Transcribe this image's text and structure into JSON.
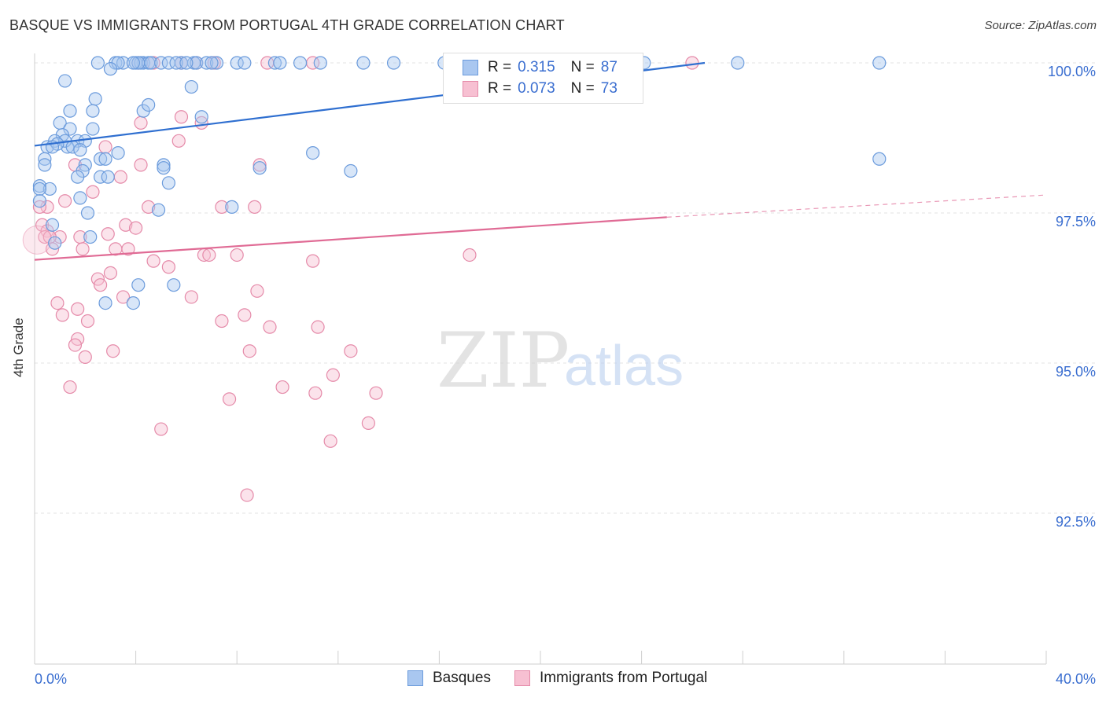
{
  "header": {
    "title": "BASQUE VS IMMIGRANTS FROM PORTUGAL 4TH GRADE CORRELATION CHART",
    "source": "Source: ZipAtlas.com"
  },
  "watermark": {
    "zip": "ZIP",
    "atlas": "atlas"
  },
  "colors": {
    "basques_fill": "#a9c7f0",
    "basques_stroke": "#6b9bdc",
    "basques_line": "#2f6fd0",
    "portugal_fill": "#f7c0d2",
    "portugal_stroke": "#e58aa9",
    "portugal_line": "#e06b95",
    "tick_label": "#3a6ed0",
    "grid": "#e3e3e3"
  },
  "legend": {
    "basques": {
      "r_label": "R =",
      "r_value": "0.315",
      "n_label": "N =",
      "n_value": "87"
    },
    "portugal": {
      "r_label": "R =",
      "r_value": "0.073",
      "n_label": "N =",
      "n_value": "73"
    }
  },
  "chart_data": {
    "type": "scatter",
    "title": "BASQUE VS IMMIGRANTS FROM PORTUGAL 4TH GRADE CORRELATION CHART",
    "xlabel": "",
    "ylabel": "4th Grade",
    "xlim": [
      0,
      40
    ],
    "ylim": [
      90,
      100.25
    ],
    "x_tick_labels": [
      "0.0%",
      "40.0%"
    ],
    "y_ticks": [
      92.5,
      95.0,
      97.5,
      100.0
    ],
    "y_tick_labels": [
      "92.5%",
      "95.0%",
      "97.5%",
      "100.0%"
    ],
    "grid": "horizontal dashed",
    "legend_position": "top-center and bottom",
    "series": [
      {
        "name": "Basques",
        "trend": {
          "x0": 0,
          "y0": 98.62,
          "x1": 26.5,
          "y1": 100.0
        },
        "points": [
          [
            4.3,
            100
          ],
          [
            2.5,
            100
          ],
          [
            3.2,
            100
          ],
          [
            3.5,
            100
          ],
          [
            3.3,
            100
          ],
          [
            4.0,
            100
          ],
          [
            4.2,
            100
          ],
          [
            4.5,
            100
          ],
          [
            4.1,
            100
          ],
          [
            4.6,
            100
          ],
          [
            5.0,
            100
          ],
          [
            5.3,
            100
          ],
          [
            5.8,
            100
          ],
          [
            6.3,
            100
          ],
          [
            6.4,
            100
          ],
          [
            6.8,
            100
          ],
          [
            7.2,
            100
          ],
          [
            5.6,
            100
          ],
          [
            7.0,
            100
          ],
          [
            8.0,
            100
          ],
          [
            6.0,
            100
          ],
          [
            9.5,
            100
          ],
          [
            9.7,
            100
          ],
          [
            10.5,
            100
          ],
          [
            8.3,
            100
          ],
          [
            11.3,
            100
          ],
          [
            13.0,
            100
          ],
          [
            14.2,
            100
          ],
          [
            16.2,
            100
          ],
          [
            27.8,
            100
          ],
          [
            33.4,
            100
          ],
          [
            24.1,
            100
          ],
          [
            3.9,
            100
          ],
          [
            3.0,
            99.9
          ],
          [
            1.2,
            99.7
          ],
          [
            6.2,
            99.6
          ],
          [
            2.4,
            99.4
          ],
          [
            2.3,
            99.2
          ],
          [
            1.4,
            99.2
          ],
          [
            4.3,
            99.2
          ],
          [
            4.5,
            99.3
          ],
          [
            1.0,
            99.0
          ],
          [
            6.6,
            99.1
          ],
          [
            2.3,
            98.9
          ],
          [
            1.4,
            98.9
          ],
          [
            1.1,
            98.8
          ],
          [
            0.5,
            98.6
          ],
          [
            0.8,
            98.7
          ],
          [
            1.7,
            98.7
          ],
          [
            2.0,
            98.7
          ],
          [
            1.3,
            98.6
          ],
          [
            1.2,
            98.7
          ],
          [
            0.9,
            98.65
          ],
          [
            1.5,
            98.6
          ],
          [
            0.7,
            98.6
          ],
          [
            1.8,
            98.55
          ],
          [
            3.3,
            98.5
          ],
          [
            11.0,
            98.5
          ],
          [
            33.4,
            98.4
          ],
          [
            0.4,
            98.4
          ],
          [
            0.4,
            98.3
          ],
          [
            2.6,
            98.4
          ],
          [
            2.8,
            98.4
          ],
          [
            5.1,
            98.3
          ],
          [
            5.1,
            98.25
          ],
          [
            2.0,
            98.3
          ],
          [
            1.9,
            98.2
          ],
          [
            8.9,
            98.25
          ],
          [
            12.5,
            98.2
          ],
          [
            2.6,
            98.1
          ],
          [
            2.9,
            98.1
          ],
          [
            1.7,
            98.1
          ],
          [
            5.3,
            98.0
          ],
          [
            0.2,
            97.95
          ],
          [
            0.6,
            97.9
          ],
          [
            0.2,
            97.9
          ],
          [
            1.8,
            97.75
          ],
          [
            0.2,
            97.7
          ],
          [
            7.8,
            97.6
          ],
          [
            4.9,
            97.55
          ],
          [
            2.1,
            97.5
          ],
          [
            0.7,
            97.3
          ],
          [
            2.2,
            97.1
          ],
          [
            0.8,
            97.0
          ],
          [
            4.1,
            96.3
          ],
          [
            5.5,
            96.3
          ],
          [
            2.8,
            96.0
          ],
          [
            3.9,
            96.0
          ]
        ]
      },
      {
        "name": "Immigrants from Portugal",
        "trend": {
          "x0": 0,
          "y0": 96.72,
          "x1": 25.0,
          "y1": 97.43,
          "dash_to_x": 40,
          "dash_to_y": 97.8
        },
        "points": [
          [
            16.7,
            100
          ],
          [
            17.0,
            100
          ],
          [
            17.1,
            100
          ],
          [
            16.9,
            100
          ],
          [
            11.0,
            100
          ],
          [
            9.2,
            100
          ],
          [
            7.1,
            100
          ],
          [
            4.1,
            100
          ],
          [
            4.7,
            100
          ],
          [
            5.8,
            100
          ],
          [
            26.0,
            100
          ],
          [
            6.4,
            100
          ],
          [
            5.8,
            99.1
          ],
          [
            4.2,
            99.0
          ],
          [
            6.6,
            99.0
          ],
          [
            5.7,
            98.7
          ],
          [
            2.8,
            98.6
          ],
          [
            8.9,
            98.3
          ],
          [
            1.6,
            98.3
          ],
          [
            4.2,
            98.3
          ],
          [
            3.4,
            98.1
          ],
          [
            2.3,
            97.85
          ],
          [
            8.7,
            97.6
          ],
          [
            0.5,
            97.6
          ],
          [
            0.2,
            97.6
          ],
          [
            4.5,
            97.6
          ],
          [
            1.2,
            97.7
          ],
          [
            7.4,
            97.6
          ],
          [
            0.3,
            97.3
          ],
          [
            0.5,
            97.2
          ],
          [
            3.6,
            97.3
          ],
          [
            4.0,
            97.25
          ],
          [
            1.0,
            97.1
          ],
          [
            1.8,
            97.1
          ],
          [
            2.9,
            97.15
          ],
          [
            0.4,
            97.1
          ],
          [
            0.6,
            97.1
          ],
          [
            3.2,
            96.9
          ],
          [
            0.7,
            96.9
          ],
          [
            1.9,
            96.9
          ],
          [
            3.7,
            96.9
          ],
          [
            6.7,
            96.8
          ],
          [
            6.9,
            96.8
          ],
          [
            17.2,
            96.8
          ],
          [
            8.0,
            96.8
          ],
          [
            11.0,
            96.7
          ],
          [
            4.7,
            96.7
          ],
          [
            5.3,
            96.6
          ],
          [
            3.0,
            96.5
          ],
          [
            2.5,
            96.4
          ],
          [
            2.6,
            96.3
          ],
          [
            8.8,
            96.2
          ],
          [
            3.5,
            96.1
          ],
          [
            6.2,
            96.1
          ],
          [
            0.9,
            96.0
          ],
          [
            1.7,
            95.9
          ],
          [
            1.1,
            95.8
          ],
          [
            7.4,
            95.7
          ],
          [
            8.3,
            95.8
          ],
          [
            2.1,
            95.7
          ],
          [
            11.2,
            95.6
          ],
          [
            9.3,
            95.6
          ],
          [
            1.7,
            95.4
          ],
          [
            1.6,
            95.3
          ],
          [
            3.1,
            95.2
          ],
          [
            12.5,
            95.2
          ],
          [
            8.5,
            95.2
          ],
          [
            2.0,
            95.1
          ],
          [
            11.8,
            94.8
          ],
          [
            9.8,
            94.6
          ],
          [
            1.4,
            94.6
          ],
          [
            13.5,
            94.5
          ],
          [
            11.1,
            94.5
          ],
          [
            7.7,
            94.4
          ],
          [
            13.2,
            94.0
          ],
          [
            5.0,
            93.9
          ],
          [
            11.7,
            93.7
          ],
          [
            8.4,
            92.8
          ]
        ]
      }
    ]
  }
}
